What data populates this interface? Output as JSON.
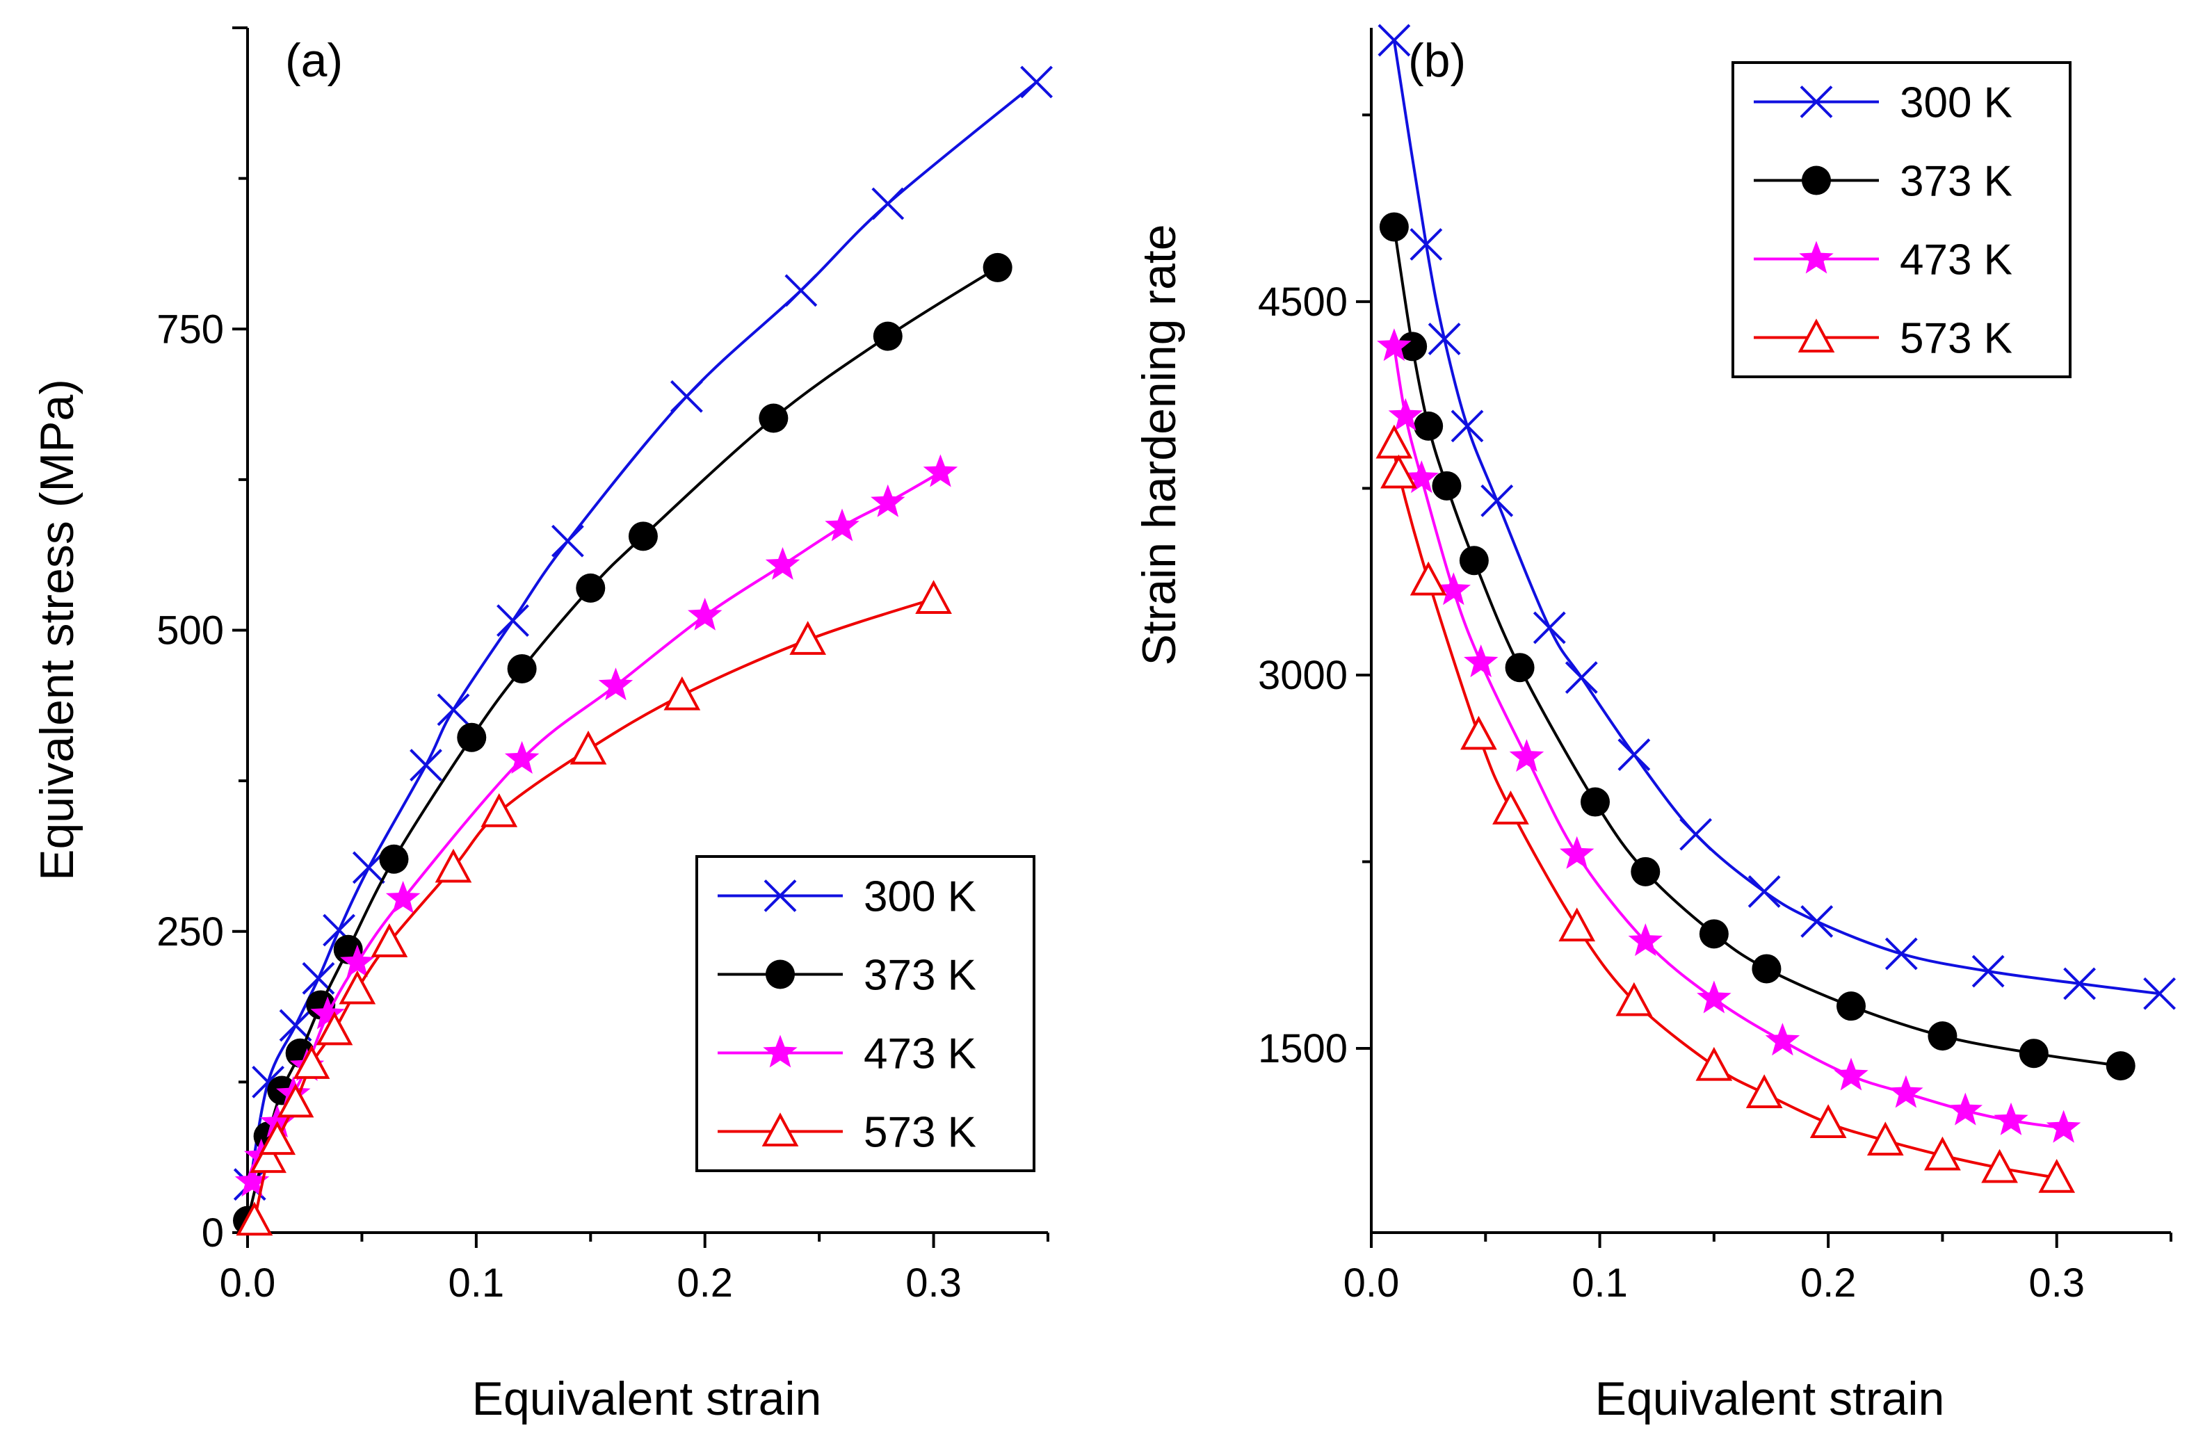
{
  "chart_data": [
    {
      "type": "line",
      "panel_label": "(a)",
      "xlabel": "Equivalent strain",
      "ylabel": "Equivalent stress (MPa)",
      "xlim": [
        0,
        0.35
      ],
      "ylim": [
        0,
        1000
      ],
      "xticks": [
        0.0,
        0.1,
        0.2,
        0.3
      ],
      "xtick_labels": [
        "0.0",
        "0.1",
        "0.2",
        "0.3"
      ],
      "yticks": [
        0,
        250,
        500,
        750
      ],
      "ytick_labels": [
        "0",
        "250",
        "500",
        "750"
      ],
      "legend_position": "bottom-right",
      "series": [
        {
          "name": "300 K",
          "color": "#1010e0",
          "marker": "x",
          "x": [
            0.001,
            0.009,
            0.021,
            0.031,
            0.04,
            0.053,
            0.078,
            0.09,
            0.116,
            0.14,
            0.192,
            0.242,
            0.28,
            0.345
          ],
          "y": [
            40,
            125,
            172,
            211,
            251,
            303,
            388,
            434,
            508,
            574,
            694,
            782,
            854,
            955
          ]
        },
        {
          "name": "373 K",
          "color": "#000000",
          "marker": "circle",
          "x": [
            0.0,
            0.009,
            0.015,
            0.023,
            0.032,
            0.044,
            0.064,
            0.098,
            0.12,
            0.15,
            0.173,
            0.23,
            0.28,
            0.328
          ],
          "y": [
            10,
            80,
            118,
            149,
            189,
            235,
            310,
            411,
            468,
            535,
            578,
            676,
            744,
            801
          ]
        },
        {
          "name": "473 K",
          "color": "#ff00ff",
          "marker": "star",
          "x": [
            0.002,
            0.006,
            0.013,
            0.02,
            0.026,
            0.035,
            0.048,
            0.068,
            0.12,
            0.161,
            0.2,
            0.234,
            0.26,
            0.28,
            0.303
          ],
          "y": [
            42,
            63,
            91,
            115,
            138,
            181,
            224,
            277,
            393,
            454,
            512,
            554,
            586,
            606,
            631
          ]
        },
        {
          "name": "573 K",
          "color": "#ee0000",
          "marker": "triangle",
          "x": [
            0.003,
            0.009,
            0.013,
            0.021,
            0.028,
            0.038,
            0.048,
            0.062,
            0.09,
            0.11,
            0.149,
            0.19,
            0.245,
            0.3
          ],
          "y": [
            10,
            62,
            77,
            108,
            140,
            168,
            202,
            241,
            303,
            349,
            401,
            446,
            492,
            526
          ]
        }
      ]
    },
    {
      "type": "line",
      "panel_label": "(b)",
      "xlabel": "Equivalent strain",
      "ylabel": "Strain hardening rate",
      "xlim": [
        0,
        0.35
      ],
      "ylim": [
        760,
        5600
      ],
      "xticks": [
        0.0,
        0.1,
        0.2,
        0.3
      ],
      "xtick_labels": [
        "0.0",
        "0.1",
        "0.2",
        "0.3"
      ],
      "yticks": [
        1500,
        3000,
        4500
      ],
      "ytick_labels": [
        "1500",
        "3000",
        "4500"
      ],
      "legend_position": "top-right",
      "series": [
        {
          "name": "300 K",
          "color": "#1010e0",
          "marker": "x",
          "x": [
            0.01,
            0.024,
            0.032,
            0.042,
            0.055,
            0.078,
            0.092,
            0.115,
            0.142,
            0.172,
            0.195,
            0.232,
            0.27,
            0.31,
            0.345
          ],
          "y": [
            5550,
            4730,
            4350,
            4000,
            3700,
            3190,
            2990,
            2680,
            2360,
            2130,
            2010,
            1880,
            1810,
            1760,
            1720
          ]
        },
        {
          "name": "373 K",
          "color": "#000000",
          "marker": "circle",
          "x": [
            0.01,
            0.018,
            0.025,
            0.033,
            0.045,
            0.065,
            0.098,
            0.12,
            0.15,
            0.173,
            0.21,
            0.25,
            0.29,
            0.328
          ],
          "y": [
            4800,
            4320,
            4000,
            3760,
            3460,
            3030,
            2490,
            2210,
            1960,
            1820,
            1670,
            1550,
            1480,
            1430
          ]
        },
        {
          "name": "473 K",
          "color": "#ff00ff",
          "marker": "star",
          "x": [
            0.01,
            0.015,
            0.022,
            0.036,
            0.048,
            0.068,
            0.09,
            0.12,
            0.15,
            0.18,
            0.21,
            0.234,
            0.26,
            0.28,
            0.303
          ],
          "y": [
            4320,
            4040,
            3790,
            3340,
            3050,
            2670,
            2280,
            1930,
            1700,
            1530,
            1390,
            1320,
            1250,
            1210,
            1180
          ]
        },
        {
          "name": "573 K",
          "color": "#ee0000",
          "marker": "triangle",
          "x": [
            0.01,
            0.012,
            0.025,
            0.047,
            0.061,
            0.09,
            0.115,
            0.15,
            0.172,
            0.2,
            0.225,
            0.25,
            0.275,
            0.3
          ],
          "y": [
            3930,
            3810,
            3380,
            2760,
            2460,
            1990,
            1690,
            1430,
            1320,
            1200,
            1130,
            1070,
            1020,
            980
          ]
        }
      ]
    }
  ]
}
